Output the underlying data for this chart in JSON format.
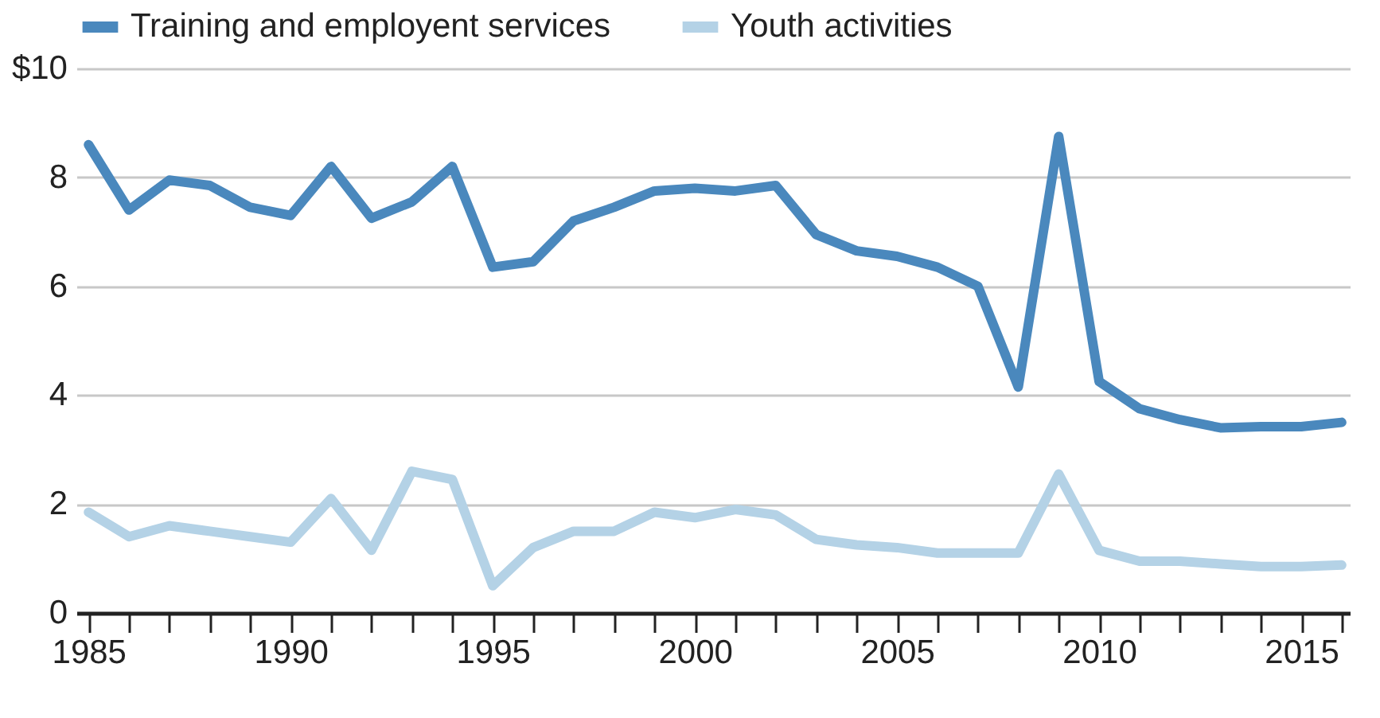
{
  "chart_data": {
    "type": "line",
    "x": [
      1985,
      1986,
      1987,
      1988,
      1989,
      1990,
      1991,
      1992,
      1993,
      1994,
      1995,
      1996,
      1997,
      1998,
      1999,
      2000,
      2001,
      2002,
      2003,
      2004,
      2005,
      2006,
      2007,
      2008,
      2009,
      2010,
      2011,
      2012,
      2013,
      2014,
      2015,
      2016
    ],
    "series": [
      {
        "name": "Training and employent services",
        "color": "#4a88bd",
        "values": [
          8.6,
          7.4,
          7.95,
          7.85,
          7.45,
          7.3,
          8.2,
          7.25,
          7.55,
          8.2,
          6.35,
          6.45,
          7.2,
          7.45,
          7.75,
          7.8,
          7.75,
          7.85,
          6.95,
          6.65,
          6.55,
          6.35,
          6.0,
          4.15,
          8.75,
          4.25,
          3.75,
          3.55,
          3.4,
          3.42,
          3.42,
          3.5
        ]
      },
      {
        "name": "Youth activities",
        "color": "#b4d2e6",
        "values": [
          1.85,
          1.4,
          1.6,
          1.5,
          1.4,
          1.3,
          2.1,
          1.15,
          2.6,
          2.45,
          0.5,
          1.2,
          1.5,
          1.5,
          1.85,
          1.75,
          1.9,
          1.8,
          1.35,
          1.25,
          1.2,
          1.1,
          1.1,
          1.1,
          2.55,
          1.15,
          0.95,
          0.95,
          0.9,
          0.85,
          0.85,
          0.88
        ]
      }
    ],
    "xlim": [
      1984.7,
      2016.2
    ],
    "xticks": [
      1985,
      {
        "value": 1986,
        "label": null
      },
      {
        "value": 1987,
        "label": null
      },
      {
        "value": 1988,
        "label": null
      },
      {
        "value": 1989,
        "label": null
      },
      1990,
      {
        "value": 1991,
        "label": null
      },
      {
        "value": 1992,
        "label": null
      },
      {
        "value": 1993,
        "label": null
      },
      {
        "value": 1994,
        "label": null
      },
      1995,
      {
        "value": 1996,
        "label": null
      },
      {
        "value": 1997,
        "label": null
      },
      {
        "value": 1998,
        "label": null
      },
      {
        "value": 1999,
        "label": null
      },
      2000,
      {
        "value": 2001,
        "label": null
      },
      {
        "value": 2002,
        "label": null
      },
      {
        "value": 2003,
        "label": null
      },
      {
        "value": 2004,
        "label": null
      },
      2005,
      {
        "value": 2006,
        "label": null
      },
      {
        "value": 2007,
        "label": null
      },
      {
        "value": 2008,
        "label": null
      },
      {
        "value": 2009,
        "label": null
      },
      2010,
      {
        "value": 2011,
        "label": null
      },
      {
        "value": 2012,
        "label": null
      },
      {
        "value": 2013,
        "label": null
      },
      {
        "value": 2014,
        "label": null
      },
      2015,
      {
        "value": 2016,
        "label": null
      }
    ],
    "ylim": [
      0,
      10
    ],
    "yticks": [
      0,
      2,
      4,
      6,
      8,
      {
        "value": 10,
        "label": "$10"
      }
    ],
    "grid": "y",
    "legend": "top",
    "marker": "none",
    "line_style": "solid"
  }
}
